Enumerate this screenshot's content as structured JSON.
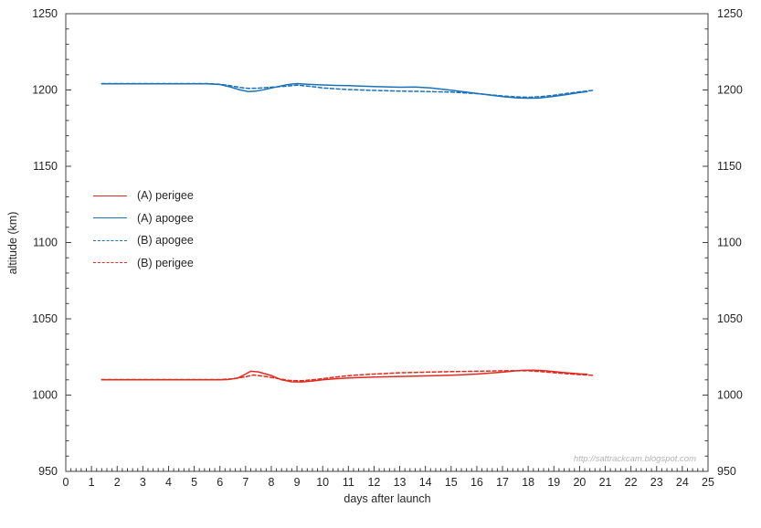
{
  "watermark": "http://sattrackcam.blogspot.com",
  "chart_data": {
    "type": "line",
    "title": "",
    "xlabel": "days after launch",
    "ylabel": "altitude (km)",
    "xlim": [
      0,
      25
    ],
    "ylim": [
      950,
      1250
    ],
    "x_tick_labels": [
      0,
      1,
      2,
      3,
      4,
      5,
      6,
      7,
      8,
      9,
      10,
      11,
      12,
      13,
      14,
      15,
      16,
      17,
      18,
      19,
      20,
      21,
      22,
      23,
      24,
      25
    ],
    "x_minor_step": 0.2,
    "y_tick_labels": [
      950,
      1000,
      1050,
      1100,
      1150,
      1200,
      1250
    ],
    "y_minor_step": 10,
    "grid": false,
    "axes": "boxed, left and right value axes both labeled, ticks inside",
    "legend_position": "inside upper-left area",
    "series": [
      {
        "name": "(A) perigee",
        "color": "#e02b20",
        "dash": false,
        "x": [
          1.4,
          2,
          3,
          4,
          5,
          5.5,
          6,
          6.3,
          6.7,
          7,
          7.2,
          7.5,
          8,
          8.4,
          8.8,
          9.2,
          9.6,
          10,
          10.5,
          11,
          12,
          13,
          14,
          15,
          16,
          17,
          17.4,
          17.8,
          18.2,
          18.6,
          19,
          19.5,
          20,
          20.3
        ],
        "y": [
          1010,
          1010,
          1010,
          1010,
          1010,
          1010,
          1010,
          1010.2,
          1011.2,
          1013.8,
          1015.6,
          1015.2,
          1012.8,
          1010,
          1008.7,
          1008.6,
          1009.2,
          1010,
          1010.7,
          1011.2,
          1011.8,
          1012.2,
          1012.6,
          1013,
          1013.8,
          1015,
          1015.7,
          1016.2,
          1016.3,
          1016,
          1015.4,
          1014.6,
          1013.9,
          1013.7
        ]
      },
      {
        "name": "(A) apogee",
        "color": "#1c72b8",
        "dash": false,
        "x": [
          1.4,
          2,
          3,
          4,
          5,
          5.5,
          6,
          6.4,
          6.8,
          7.1,
          7.4,
          7.8,
          8.2,
          8.6,
          9,
          9.4,
          10,
          10.5,
          11,
          12,
          13,
          13.6,
          14.2,
          15,
          16,
          17,
          17.6,
          18,
          18.4,
          19,
          19.5,
          20,
          20.3
        ],
        "y": [
          1204,
          1204,
          1204,
          1204,
          1204,
          1204,
          1203.6,
          1202,
          1200,
          1199,
          1199.2,
          1200.5,
          1202,
          1203.5,
          1204.2,
          1203.8,
          1203.3,
          1203,
          1202.9,
          1202.3,
          1201.8,
          1201.9,
          1201.3,
          1199.8,
          1197.8,
          1195.6,
          1194.8,
          1194.6,
          1194.7,
          1195.8,
          1197,
          1198.3,
          1199
        ]
      },
      {
        "name": "(B) apogee",
        "color": "#1c72b8",
        "dash": true,
        "x": [
          1.4,
          2,
          3,
          4,
          5,
          5.5,
          6,
          6.4,
          6.8,
          7.1,
          7.5,
          8,
          8.5,
          9,
          9.5,
          10,
          10.5,
          11,
          11.5,
          12,
          13,
          14,
          15,
          16,
          17,
          17.5,
          18,
          18.5,
          19,
          19.5,
          20,
          20.5
        ],
        "y": [
          1204.2,
          1204.2,
          1204.2,
          1204.2,
          1204.2,
          1204.2,
          1203.8,
          1202.8,
          1201.6,
          1201,
          1201.2,
          1201.8,
          1202.4,
          1203.2,
          1202.4,
          1201.4,
          1200.8,
          1200.3,
          1200,
          1199.7,
          1199.3,
          1199,
          1198.6,
          1197.6,
          1196.1,
          1195.5,
          1195.2,
          1195.6,
          1196.5,
          1197.7,
          1198.8,
          1199.7
        ]
      },
      {
        "name": "(B) perigee",
        "color": "#e02b20",
        "dash": true,
        "x": [
          1.4,
          2,
          3,
          4,
          5,
          5.5,
          6,
          6.5,
          7,
          7.3,
          7.7,
          8.2,
          8.7,
          9.2,
          9.7,
          10.2,
          10.7,
          11.2,
          12,
          13,
          14,
          15,
          16,
          17,
          17.5,
          18,
          18.5,
          19,
          19.5,
          20,
          20.5
        ],
        "y": [
          1010.2,
          1010.2,
          1010.2,
          1010.2,
          1010.2,
          1010.2,
          1010.2,
          1010.6,
          1012,
          1013.2,
          1012.4,
          1011,
          1009.6,
          1009.4,
          1010.2,
          1011.2,
          1012.2,
          1013,
          1013.8,
          1014.6,
          1015,
          1015.4,
          1015.6,
          1015.9,
          1016,
          1015.9,
          1015.4,
          1014.7,
          1014,
          1013.4,
          1013
        ]
      }
    ]
  }
}
